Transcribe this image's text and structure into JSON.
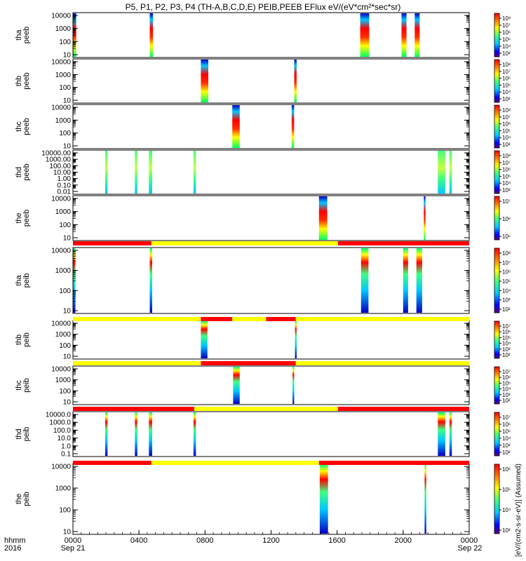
{
  "chart_data": {
    "type": "heatmap",
    "title": "P5, P1, P2, P3, P4 (TH-A,B,C,D,E) PEIB,PEEB EFlux eV/(eV*cm²*sec*sr)",
    "colorbar_label": "[eV/(cm2-s-sr-eV)] (Assumed)",
    "x_axis": {
      "tick_labels": [
        "0000",
        "0400",
        "0800",
        "1200",
        "1600",
        "2000",
        "0000"
      ],
      "tick_hours": [
        0,
        4,
        8,
        12,
        16,
        20,
        24
      ],
      "row_label_1": "hhmm",
      "row_label_2": "2016",
      "start_date": "Sep 21",
      "end_date": "Sep 22",
      "range_hours": [
        0,
        24
      ]
    },
    "panels": [
      {
        "probe": "tha",
        "product": "peeb",
        "ylabel": "tha\npeeb",
        "y_ticks": [
          "10000",
          "1000",
          "100",
          "10"
        ],
        "cbar_ticks": [
          "10⁸",
          "10⁷",
          "10⁶",
          "10⁵",
          "10⁴",
          "10³"
        ],
        "bursts": [
          [
            0,
            0.2
          ],
          [
            4.65,
            4.85
          ],
          [
            17.4,
            17.95
          ],
          [
            19.9,
            20.2
          ],
          [
            20.7,
            21.0
          ]
        ]
      },
      {
        "probe": "thb",
        "product": "peeb",
        "ylabel": "thb\npeeb",
        "y_ticks": [
          "10000",
          "1000",
          "100",
          "10"
        ],
        "cbar_ticks": [
          "10⁸",
          "10⁷",
          "10⁶",
          "10⁵",
          "10⁴",
          "10³"
        ],
        "bursts": [
          [
            7.75,
            8.2
          ],
          [
            13.4,
            13.55
          ]
        ]
      },
      {
        "probe": "thc",
        "product": "peeb",
        "ylabel": "thc\npeeb",
        "y_ticks": [
          "10000",
          "1000",
          "100",
          "10"
        ],
        "cbar_ticks": [
          "10⁸",
          "10⁷",
          "10⁶",
          "10⁵",
          "10⁴",
          "10³"
        ],
        "bursts": [
          [
            9.65,
            10.1
          ],
          [
            13.25,
            13.4
          ]
        ]
      },
      {
        "probe": "thd",
        "product": "peeb",
        "ylabel": "thd\npeeb",
        "y_ticks": [
          "10000.00",
          "1000.00",
          "100.00",
          "10.00",
          "1.00",
          "0.10",
          "0.01"
        ],
        "cbar_ticks": [
          "10⁸",
          "10⁷",
          "10⁶",
          "10⁵",
          "10⁴",
          "10³"
        ],
        "bursts": [
          [
            1.95,
            2.1
          ],
          [
            3.75,
            3.9
          ],
          [
            4.6,
            4.8
          ],
          [
            7.3,
            7.45
          ],
          [
            22.1,
            22.55
          ],
          [
            22.8,
            22.95
          ]
        ]
      },
      {
        "probe": "the",
        "product": "peeb",
        "ylabel": "the\npeeb",
        "y_ticks": [
          "10000",
          "1000",
          "100",
          "10"
        ],
        "cbar_ticks": [
          "10⁷",
          "10⁶",
          "10⁵"
        ],
        "bursts": [
          [
            14.9,
            15.4
          ],
          [
            21.25,
            21.35
          ]
        ]
      },
      {
        "probe": "tha",
        "product": "peib",
        "ylabel": "tha\npeib",
        "y_ticks": [
          "10000",
          "1000",
          "100",
          "10"
        ],
        "cbar_ticks": [
          "10⁸",
          "10⁷",
          "10⁶",
          "10⁵",
          "10⁴",
          "10³",
          "10²"
        ],
        "bursts": [
          [
            0,
            0.15
          ],
          [
            4.65,
            4.8
          ],
          [
            17.45,
            17.9
          ],
          [
            20.0,
            20.3
          ],
          [
            20.8,
            21.15
          ]
        ]
      },
      {
        "probe": "thb",
        "product": "peib",
        "ylabel": "thb\npeib",
        "y_ticks": [
          "10000",
          "1000",
          "100",
          "10"
        ],
        "cbar_ticks": [
          "10⁷",
          "10⁶",
          "10⁵",
          "10⁴",
          "10³",
          "10²"
        ],
        "bursts": [
          [
            7.75,
            8.15
          ],
          [
            13.45,
            13.55
          ]
        ]
      },
      {
        "probe": "thc",
        "product": "peib",
        "ylabel": "thc\npeib",
        "y_ticks": [
          "10000",
          "1000",
          "100",
          "10"
        ],
        "cbar_ticks": [
          "10⁷",
          "10⁶",
          "10⁵",
          "10⁴",
          "10³",
          "10²"
        ],
        "bursts": [
          [
            9.7,
            10.1
          ],
          [
            13.3,
            13.4
          ]
        ]
      },
      {
        "probe": "thd",
        "product": "peib",
        "ylabel": "thd\npeib",
        "y_ticks": [
          "10000.0",
          "1000.0",
          "100.0",
          "10.0",
          "1.0",
          "0.1"
        ],
        "cbar_ticks": [
          "10⁷",
          "10⁶",
          "10⁵",
          "10⁴",
          "10³",
          "10²"
        ],
        "bursts": [
          [
            1.95,
            2.1
          ],
          [
            3.75,
            3.9
          ],
          [
            4.6,
            4.8
          ],
          [
            7.3,
            7.45
          ],
          [
            22.1,
            22.55
          ],
          [
            22.8,
            22.95
          ]
        ]
      },
      {
        "probe": "the",
        "product": "peib",
        "ylabel": "the\npeib",
        "y_ticks": [
          "10000",
          "1000",
          "100",
          "10"
        ],
        "cbar_ticks": [
          "10⁶",
          "10⁵",
          "10⁴",
          "10³"
        ],
        "bursts": [
          [
            14.95,
            15.45
          ],
          [
            21.3,
            21.4
          ]
        ]
      }
    ],
    "mode_bars": [
      {
        "segments": [
          [
            0,
            4.75,
            "red"
          ],
          [
            4.75,
            16.05,
            "yellow"
          ],
          [
            16.05,
            24,
            "red"
          ]
        ]
      },
      {
        "segments": [
          [
            0,
            7.75,
            "yellow"
          ],
          [
            7.75,
            9.65,
            "red"
          ],
          [
            9.65,
            11.7,
            "yellow"
          ],
          [
            11.7,
            13.5,
            "red"
          ],
          [
            13.5,
            24,
            "yellow"
          ]
        ]
      },
      {
        "segments": [
          [
            0,
            7.75,
            "yellow"
          ],
          [
            7.75,
            13.5,
            "red"
          ],
          [
            13.5,
            24,
            "yellow"
          ]
        ]
      },
      {
        "segments": [
          [
            0,
            7.35,
            "red"
          ],
          [
            7.35,
            16.05,
            "yellow"
          ],
          [
            16.05,
            24,
            "red"
          ]
        ]
      },
      {
        "segments": [
          [
            0,
            4.75,
            "red"
          ],
          [
            4.75,
            14.9,
            "yellow"
          ],
          [
            14.9,
            24,
            "red"
          ]
        ]
      }
    ],
    "colors": {
      "red": "#ff0000",
      "yellow": "#ffff00"
    }
  }
}
